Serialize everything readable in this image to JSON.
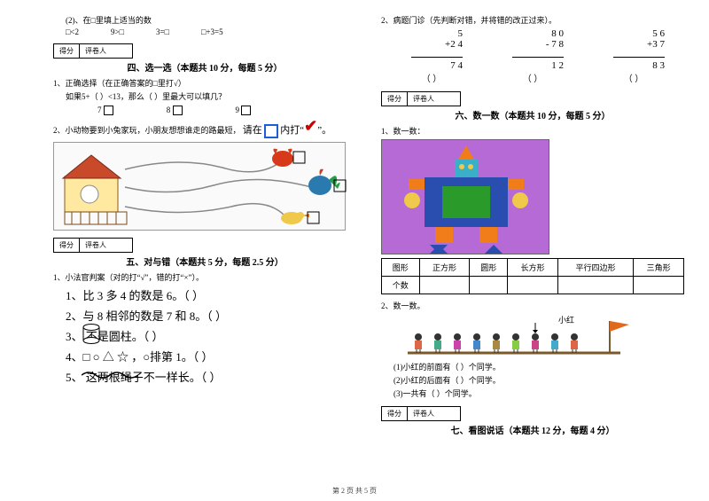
{
  "left": {
    "q2": {
      "label": "(2)、在□里填上适当的数",
      "opts": [
        "□<2",
        "9>□",
        "3=□",
        "□+3=5"
      ]
    },
    "score": {
      "a": "得分",
      "b": "评卷人"
    },
    "sec4": {
      "title": "四、选一选（本题共 10 分，每题 5 分）",
      "q1": "1、正确选择（在正确答案的□里打√）",
      "q1a": "如果5+（ ）<13，那么（ ）里最大可以填几？",
      "opts": [
        "7",
        "8",
        "9"
      ],
      "q2": "2、小动物要到小兔家玩，小朋友想想谁走的路最短，",
      "q2b": "请在",
      "q2c": "内打“",
      "q2d": "”。"
    },
    "sec5": {
      "title": "五、对与错（本题共 5 分，每题 2.5 分）",
      "q1": "1、小法官判案（对的打“√”，错的打“×”）。",
      "items": [
        "1、比 3 多 4 的数是 6。（    ）",
        "2、与 8 相邻的数是 7 和 8。（    ）",
        "3、        不是圆柱。（    ）",
        "4、□ ○ △ ☆  ，○排第 1。（    ）",
        "5、            这两根绳子不一样长。（    ）"
      ]
    }
  },
  "right": {
    "q2": {
      "label": "2、病题门诊（先判断对错，并将错的改正过来）。",
      "calcs": [
        {
          "a": "5",
          "b": "+2 4",
          "l": "7 4"
        },
        {
          "a": "8 0",
          "b": "- 7 8",
          "l": "1 2"
        },
        {
          "a": "5 6",
          "b": "+3 7",
          "l": "8 3"
        }
      ],
      "paren": "（    ）"
    },
    "score": {
      "a": "得分",
      "b": "评卷人"
    },
    "sec6": {
      "title": "六、数一数（本题共 10 分，每题 5 分）",
      "q1": "1、数一数：",
      "tbl_h": [
        "图形",
        "正方形",
        "圆形",
        "长方形",
        "平行四边形",
        "三角形"
      ],
      "tbl_r": "个数",
      "q2": "2、数一数。",
      "xh": "小红",
      "sub": [
        "(1)小红的前面有（    ）个同学。",
        "(2)小红的后面有（    ）个同学。",
        "(3)一共有（    ）个同学。"
      ]
    },
    "sec7": {
      "title": "七、看图说话（本题共 12 分，每题 4 分）"
    }
  },
  "footer": "第 2 页 共 5 页",
  "colors": {
    "robot_bg": "#b56ad6",
    "robot_green": "#2a9b2a",
    "robot_blue": "#2a4db0",
    "robot_orange": "#f07d1a",
    "robot_cyan": "#3ab0c8",
    "flag": "#e06a1a",
    "ground": "#7a5a2a"
  }
}
